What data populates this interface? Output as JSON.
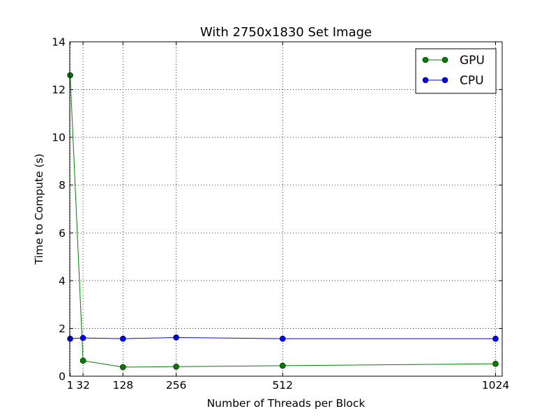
{
  "chart_data": {
    "type": "line",
    "title": "With 2750x1830 Set Image",
    "xlabel": "Number of Threads per Block",
    "ylabel": "Time to Compute (s)",
    "x": [
      1,
      32,
      128,
      256,
      512,
      1024
    ],
    "xticks": [
      1,
      32,
      128,
      256,
      512,
      1024
    ],
    "xtick_labels": [
      "1",
      "32",
      "128",
      "256",
      "512",
      "1024"
    ],
    "yticks": [
      0,
      2,
      4,
      6,
      8,
      10,
      12,
      14
    ],
    "ytick_labels": [
      "0",
      "2",
      "4",
      "6",
      "8",
      "10",
      "12",
      "14"
    ],
    "xlim": [
      0,
      1040
    ],
    "ylim": [
      0,
      14
    ],
    "grid": true,
    "legend_position": "top-right",
    "series": [
      {
        "name": "GPU",
        "color": "#007f00",
        "values": [
          12.6,
          0.65,
          0.38,
          0.4,
          0.44,
          0.52
        ]
      },
      {
        "name": "CPU",
        "color": "#0000ff",
        "values": [
          1.57,
          1.6,
          1.57,
          1.62,
          1.57,
          1.57
        ]
      }
    ]
  }
}
